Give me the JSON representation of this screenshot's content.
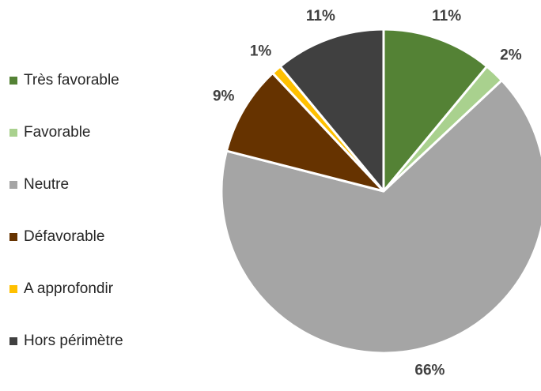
{
  "chart_data": {
    "type": "pie",
    "categories": [
      "Très favorable",
      "Favorable",
      "Neutre",
      "Défavorable",
      "A approfondir",
      "Hors périmètre"
    ],
    "values": [
      11,
      2,
      66,
      9,
      1,
      11
    ],
    "value_labels": [
      "11%",
      "2%",
      "66%",
      "9%",
      "1%",
      "11%"
    ],
    "colors": [
      "#548235",
      "#a9d18e",
      "#a5a5a5",
      "#663300",
      "#ffc000",
      "#404040"
    ],
    "legend": "left"
  }
}
